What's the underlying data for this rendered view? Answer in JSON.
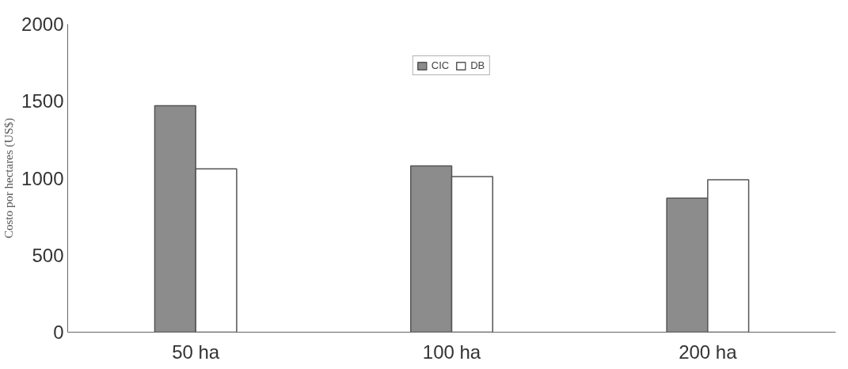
{
  "chart_data": {
    "type": "bar",
    "ylabel": "Costo por hectares (US$)",
    "categories": [
      "50 ha",
      "100 ha",
      "200 ha"
    ],
    "series": [
      {
        "name": "CIC",
        "color": "#8c8c8c",
        "values": [
          1470,
          1080,
          870
        ]
      },
      {
        "name": "DB",
        "color": "#ffffff",
        "values": [
          1060,
          1010,
          990
        ]
      }
    ],
    "ylim": [
      0,
      2000
    ],
    "yticks": [
      0,
      500,
      1000,
      1500,
      2000
    ],
    "grid": false,
    "legend": "top"
  }
}
